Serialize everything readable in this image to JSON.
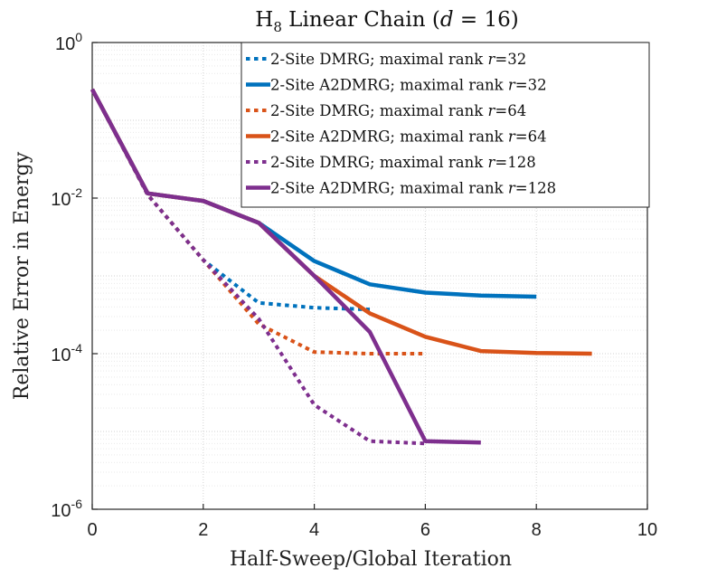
{
  "chart_data": {
    "type": "line",
    "title": {
      "prefix": "H",
      "subscript": "8",
      "middle": " Linear Chain (",
      "var": "d",
      "suffix": " = 16)"
    },
    "xlabel": "Half-Sweep/Global Iteration",
    "ylabel": "Relative Error in Energy",
    "xlim": [
      0,
      10
    ],
    "ylim": [
      1e-06,
      1
    ],
    "yscale": "log",
    "grid": true,
    "legend_position": "top-right",
    "x_ticks": [
      {
        "value": 0,
        "label": "0"
      },
      {
        "value": 2,
        "label": "2"
      },
      {
        "value": 4,
        "label": "4"
      },
      {
        "value": 6,
        "label": "6"
      },
      {
        "value": 8,
        "label": "8"
      },
      {
        "value": 10,
        "label": "10"
      }
    ],
    "y_ticks": [
      {
        "exp": 0,
        "base": "10",
        "sup": "0"
      },
      {
        "exp": -2,
        "base": "10",
        "sup": "-2"
      },
      {
        "exp": -4,
        "base": "10",
        "sup": "-4"
      },
      {
        "exp": -6,
        "base": "10",
        "sup": "-6"
      }
    ],
    "series": [
      {
        "name": "2-Site DMRG; maximal rank r=32",
        "legend": {
          "method": "2-Site DMRG; maximal rank ",
          "var": "r",
          "value": "=32"
        },
        "color": "#0072BD",
        "style": "dotted",
        "x": [
          0,
          1,
          2,
          3,
          4,
          5
        ],
        "y": [
          0.25,
          0.011,
          0.0016,
          0.00045,
          0.00039,
          0.00037
        ]
      },
      {
        "name": "2-Site A2DMRG; maximal rank r=32",
        "legend": {
          "method": "2-Site A2DMRG; maximal rank ",
          "var": "r",
          "value": "=32"
        },
        "color": "#0072BD",
        "style": "solid",
        "x": [
          0,
          1,
          2,
          3,
          4,
          5,
          6,
          7,
          8
        ],
        "y": [
          0.25,
          0.0115,
          0.0092,
          0.0048,
          0.00155,
          0.00078,
          0.00061,
          0.00056,
          0.00054
        ]
      },
      {
        "name": "2-Site DMRG; maximal rank r=64",
        "legend": {
          "method": "2-Site DMRG; maximal rank ",
          "var": "r",
          "value": "=64"
        },
        "color": "#D95319",
        "style": "dotted",
        "x": [
          0,
          1,
          2,
          3,
          4,
          5,
          6
        ],
        "y": [
          0.25,
          0.011,
          0.0016,
          0.00024,
          0.000105,
          0.0001,
          0.0001
        ]
      },
      {
        "name": "2-Site A2DMRG; maximal rank r=64",
        "legend": {
          "method": "2-Site A2DMRG; maximal rank ",
          "var": "r",
          "value": "=64"
        },
        "color": "#D95319",
        "style": "solid",
        "x": [
          0,
          1,
          2,
          3,
          4,
          5,
          6,
          7,
          8,
          9
        ],
        "y": [
          0.25,
          0.0115,
          0.0092,
          0.0048,
          0.001,
          0.00033,
          0.000165,
          0.000108,
          0.000102,
          0.0001
        ]
      },
      {
        "name": "2-Site DMRG; maximal rank r=128",
        "legend": {
          "method": "2-Site DMRG; maximal rank ",
          "var": "r",
          "value": "=128"
        },
        "color": "#7E2F8E",
        "style": "dotted",
        "x": [
          0,
          1,
          2,
          3,
          4,
          5,
          6
        ],
        "y": [
          0.25,
          0.011,
          0.0016,
          0.00028,
          2.2e-05,
          7.5e-06,
          7e-06
        ]
      },
      {
        "name": "2-Site A2DMRG; maximal rank r=128",
        "legend": {
          "method": "2-Site A2DMRG; maximal rank ",
          "var": "r",
          "value": "=128"
        },
        "color": "#7E2F8E",
        "style": "solid",
        "x": [
          0,
          1,
          2,
          3,
          4,
          5,
          6,
          7
        ],
        "y": [
          0.25,
          0.0115,
          0.0092,
          0.0048,
          0.001,
          0.00019,
          7.5e-06,
          7.2e-06
        ]
      }
    ]
  }
}
